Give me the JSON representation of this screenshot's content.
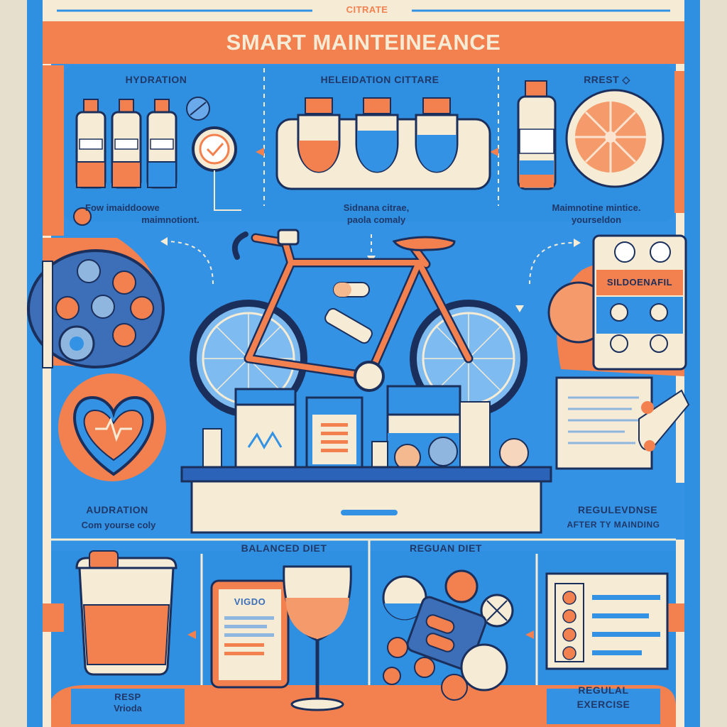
{
  "header": {
    "top_label": "CITRATE",
    "title": "SMART MAINTEINEANCE"
  },
  "panels": {
    "hydration": {
      "title": "HYDRATION",
      "caption_1": "Fow imaiddoowe",
      "caption_2": "maimnotiont."
    },
    "heleidation": {
      "title": "HELEIDATION CITTARE",
      "caption_1": "Sidnana citrae,",
      "caption_2": "paola comaly"
    },
    "rrest": {
      "title": "RREST ◇",
      "caption_1": "Maimnotine mintice.",
      "caption_2": "yourseldon"
    },
    "pill_pack_label": "SILDOENAFIL",
    "audration": {
      "title": "AUDRATION",
      "caption": "Com yourse coly"
    },
    "regulevdnse": {
      "title": "REGULEVDNSE",
      "caption": "AFTER TY MAINDING"
    },
    "balanced_diet": {
      "title": "BALANCED DIET",
      "tablet_label": "VIGDO"
    },
    "reguan_diet": {
      "title": "REGUAN DIET"
    },
    "resp": {
      "line_1": "RESP",
      "line_2": "Vrioda"
    },
    "regular_exercise": {
      "line_1": "REGULAL",
      "line_2": "EXERCISE"
    }
  },
  "colors": {
    "blue": "#2f8fe0",
    "dark_blue": "#1f5fb5",
    "orange": "#f27a4a",
    "cream": "#f6ecd6",
    "navy": "#1b2f5c"
  }
}
